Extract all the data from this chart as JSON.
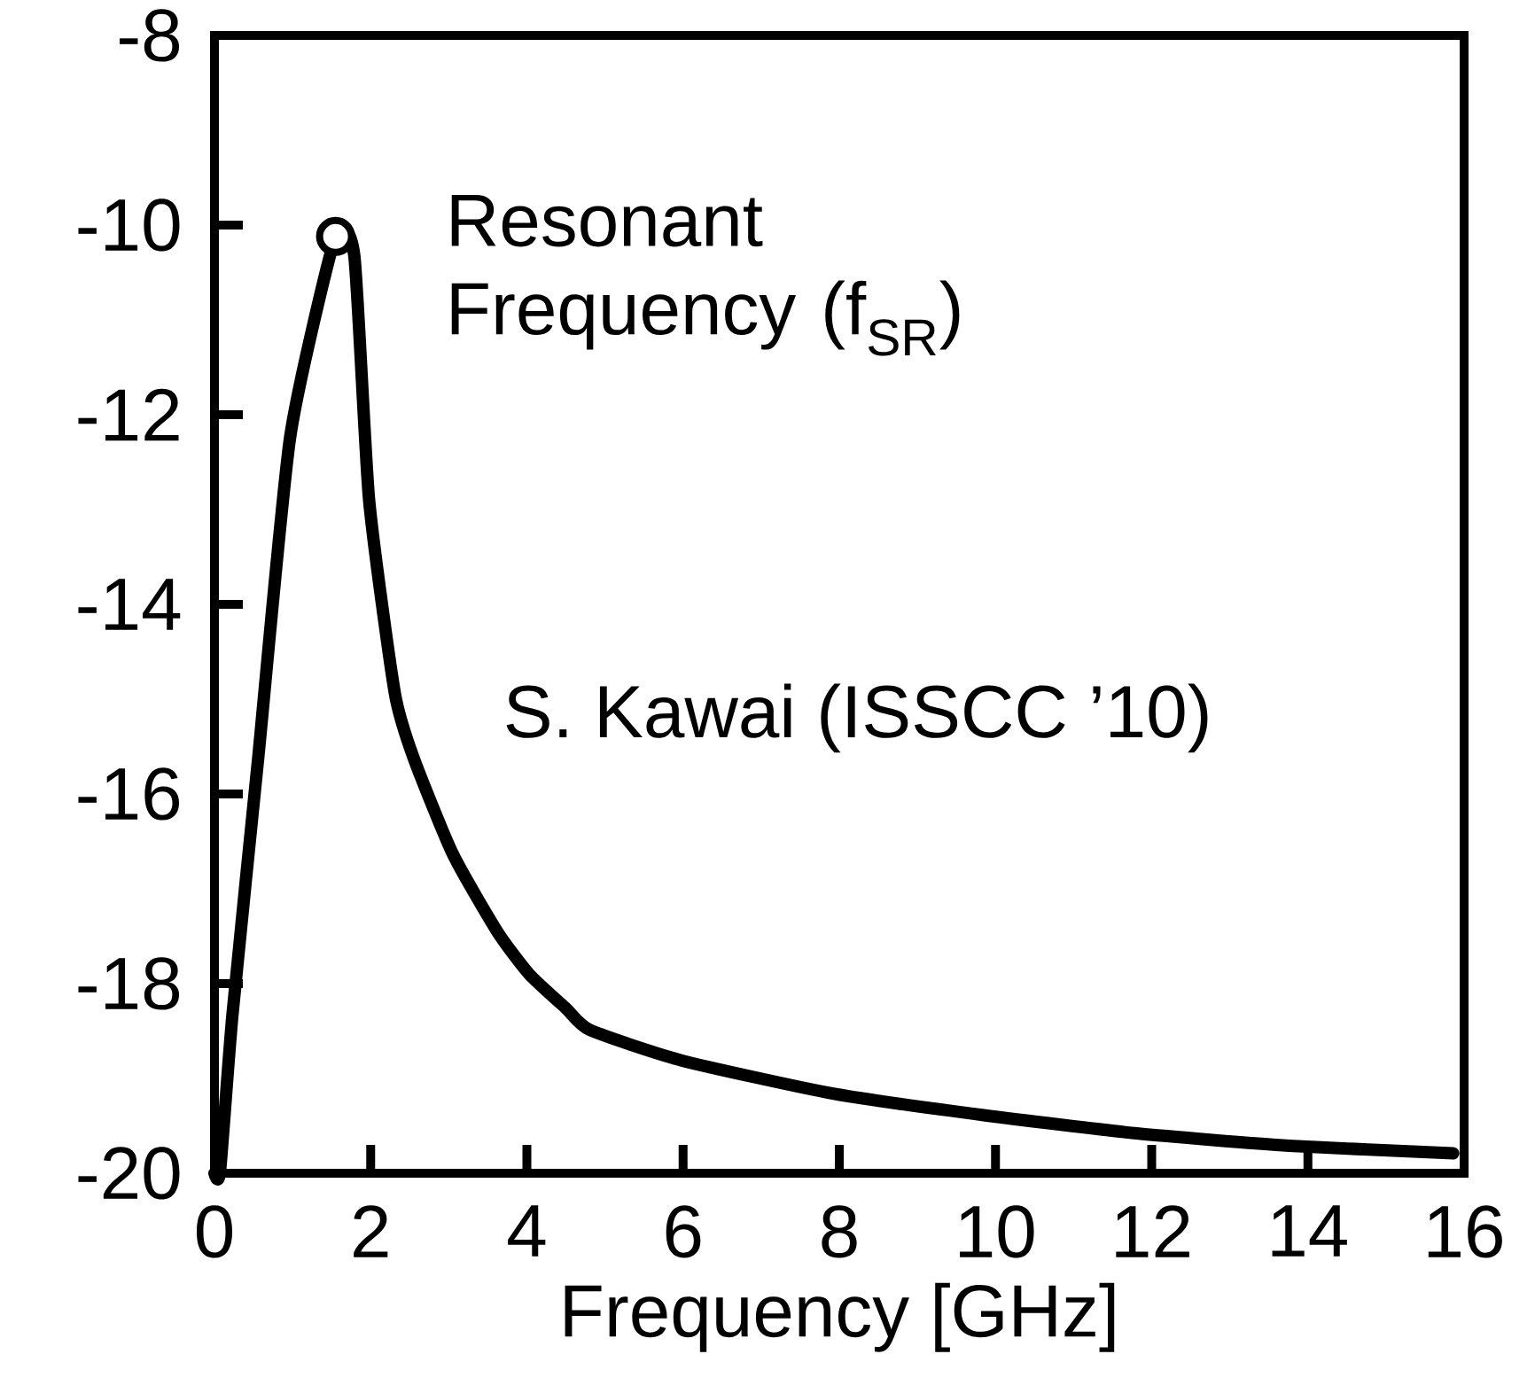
{
  "chart_data": {
    "type": "line",
    "xlabel": "Frequency [GHz]",
    "xlim": [
      0,
      16
    ],
    "ylim": [
      -20,
      -8
    ],
    "xticks": [
      0,
      2,
      4,
      6,
      8,
      10,
      12,
      14,
      16
    ],
    "yticks": [
      -20,
      -18,
      -16,
      -14,
      -12,
      -10,
      -8
    ],
    "grid": false,
    "line_style": "solid",
    "series": [
      {
        "color": "#000000",
        "marker": "none",
        "x": [
          0,
          0.07,
          0.23,
          0.56,
          0.97,
          1.55,
          1.79,
          1.98,
          2.31,
          2.55,
          3.05,
          3.62,
          4.03,
          4.5,
          4.81,
          5.98,
          7.92,
          9.87,
          11.81,
          13.76,
          15.86
        ],
        "values": [
          -20,
          -19.99,
          -18.33,
          -15.62,
          -12.23,
          -10.12,
          -10.32,
          -12.9,
          -14.94,
          -15.62,
          -16.63,
          -17.45,
          -17.9,
          -18.26,
          -18.49,
          -18.81,
          -19.16,
          -19.39,
          -19.58,
          -19.71,
          -19.79
        ]
      },
      {
        "type": "scatter",
        "color": "#000000",
        "marker": "circle",
        "x": [
          1.55
        ],
        "values": [
          -10.12
        ]
      }
    ],
    "annotations": [
      {
        "text": "Resonant Frequency (f$_{SR}$)",
        "x": 1.55,
        "y": -10.12
      },
      "S. Kawai (ISSCC ’10)"
    ]
  }
}
